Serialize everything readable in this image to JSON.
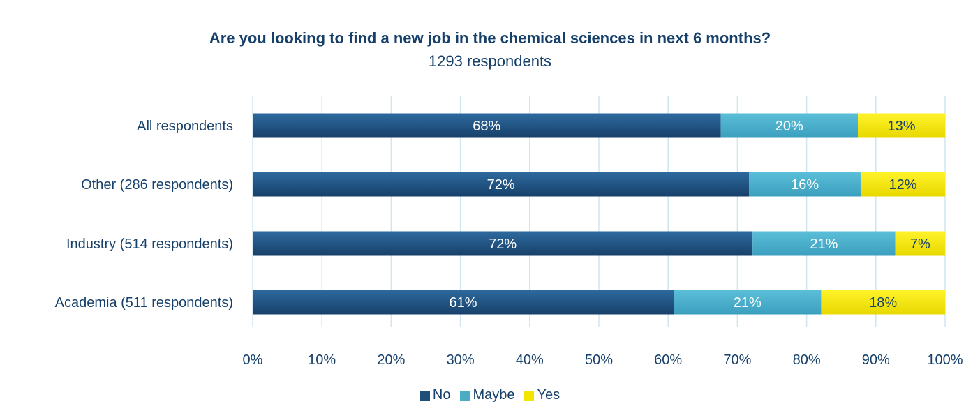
{
  "chart_data": {
    "type": "bar",
    "orientation": "horizontal",
    "stacked": true,
    "title": "Are you looking to find a new job in the chemical sciences in next 6 months?",
    "subtitle": "1293 respondents",
    "categories": [
      "All respondents",
      "Other (286 respondents)",
      "Industry (514 respondents)",
      "Academia (511 respondents)"
    ],
    "series": [
      {
        "name": "No",
        "color": "#1f4e79",
        "values": [
          67.6,
          71.7,
          72.2,
          60.8
        ],
        "labels": [
          "68%",
          "72%",
          "72%",
          "61%"
        ]
      },
      {
        "name": "Maybe",
        "color": "#4bacc6",
        "values": [
          19.8,
          16.1,
          20.6,
          21.3
        ],
        "labels": [
          "20%",
          "16%",
          "21%",
          "21%"
        ]
      },
      {
        "name": "Yes",
        "color": "#f2e500",
        "values": [
          12.6,
          12.2,
          7.2,
          17.9
        ],
        "labels": [
          "13%",
          "12%",
          "7%",
          "18%"
        ]
      }
    ],
    "xlim": [
      0,
      100
    ],
    "x_ticks": [
      "0%",
      "10%",
      "20%",
      "30%",
      "40%",
      "50%",
      "60%",
      "70%",
      "80%",
      "90%",
      "100%"
    ],
    "grid": true,
    "legend_position": "bottom"
  }
}
